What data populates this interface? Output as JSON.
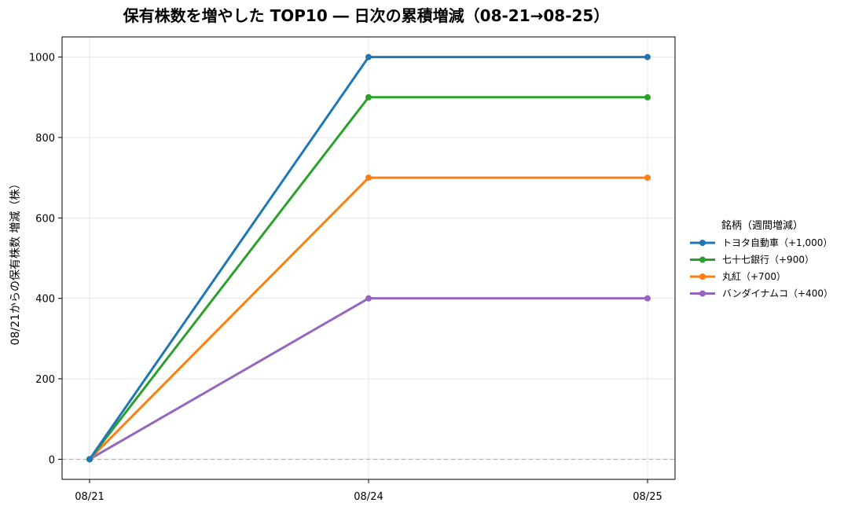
{
  "chart_data": {
    "type": "line",
    "title": "保有株数を増やした TOP10 ― 日次の累積増減（08-21→08-25）",
    "xlabel": "",
    "ylabel": "08/21からの保有株数 増減（株）",
    "categories": [
      "08/21",
      "08/24",
      "08/25"
    ],
    "yticks": [
      "0",
      "200",
      "400",
      "600",
      "800",
      "1000"
    ],
    "ylim": [
      -50,
      1050
    ],
    "grid": true,
    "zero_line": true,
    "legend_title": "銘柄（週間増減）",
    "legend_position": "right",
    "series": [
      {
        "name": "トヨタ自動車（+1,000）",
        "values": [
          0,
          1000,
          1000
        ],
        "color": "#1f77b4"
      },
      {
        "name": "七十七銀行（+900）",
        "values": [
          0,
          900,
          900
        ],
        "color": "#2ca02c"
      },
      {
        "name": "丸紅（+700）",
        "values": [
          0,
          700,
          700
        ],
        "color": "#ff7f0e"
      },
      {
        "name": "バンダイナムコ（+400）",
        "values": [
          0,
          400,
          400
        ],
        "color": "#9467bd"
      }
    ]
  }
}
